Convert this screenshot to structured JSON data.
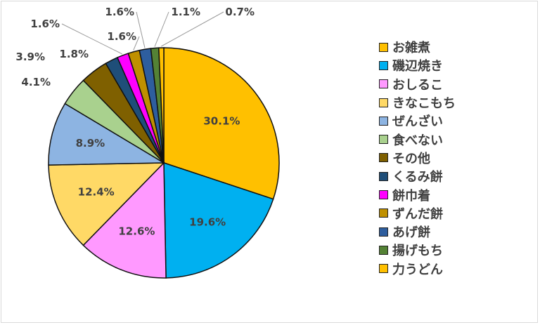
{
  "chart_data": {
    "type": "pie",
    "title": "",
    "legend_position": "right",
    "slices": [
      {
        "label": "お雑煮",
        "value": 30.1,
        "display": "30.1%",
        "color": "#ffc000"
      },
      {
        "label": "磯辺焼き",
        "value": 19.6,
        "display": "19.6%",
        "color": "#00b0f0"
      },
      {
        "label": "おしるこ",
        "value": 12.6,
        "display": "12.6%",
        "color": "#ff99ff"
      },
      {
        "label": "きなこもち",
        "value": 12.4,
        "display": "12.4%",
        "color": "#ffd966"
      },
      {
        "label": "ぜんざい",
        "value": 8.9,
        "display": "8.9%",
        "color": "#8db4e2"
      },
      {
        "label": "食べない",
        "value": 4.1,
        "display": "4.1%",
        "color": "#a9d18e"
      },
      {
        "label": "その他",
        "value": 3.9,
        "display": "3.9%",
        "color": "#7f6000"
      },
      {
        "label": "くるみ餅",
        "value": 1.8,
        "display": "1.8%",
        "color": "#1f4e79"
      },
      {
        "label": "餅巾着",
        "value": 1.6,
        "display": "1.6%",
        "color": "#ff00ff"
      },
      {
        "label": "ずんだ餅",
        "value": 1.6,
        "display": "1.6%",
        "color": "#bf9000"
      },
      {
        "label": "あげ餅",
        "value": 1.6,
        "display": "1.6%",
        "color": "#2e5e9e"
      },
      {
        "label": "揚げもち",
        "value": 1.1,
        "display": "1.1%",
        "color": "#548235"
      },
      {
        "label": "力うどん",
        "value": 0.7,
        "display": "0.7%",
        "color": "#ffc000"
      }
    ]
  }
}
